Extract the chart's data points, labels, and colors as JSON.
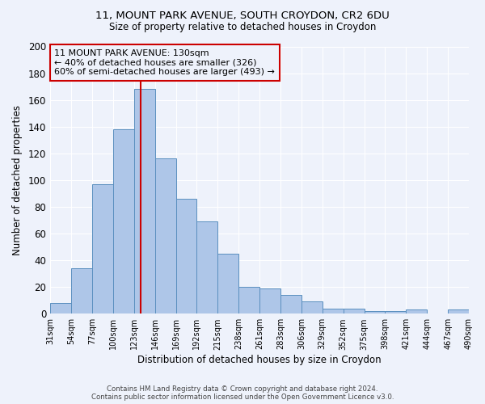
{
  "title1": "11, MOUNT PARK AVENUE, SOUTH CROYDON, CR2 6DU",
  "title2": "Size of property relative to detached houses in Croydon",
  "xlabel": "Distribution of detached houses by size in Croydon",
  "ylabel": "Number of detached properties",
  "bar_labels": [
    "31sqm",
    "54sqm",
    "77sqm",
    "100sqm",
    "123sqm",
    "146sqm",
    "169sqm",
    "192sqm",
    "215sqm",
    "238sqm",
    "261sqm",
    "283sqm",
    "306sqm",
    "329sqm",
    "352sqm",
    "375sqm",
    "398sqm",
    "421sqm",
    "444sqm",
    "467sqm",
    "490sqm"
  ],
  "bar_values": [
    8,
    34,
    97,
    138,
    168,
    116,
    86,
    69,
    45,
    20,
    19,
    14,
    9,
    4,
    4,
    2,
    2,
    3,
    0,
    3
  ],
  "bar_color": "#aec6e8",
  "bar_edgecolor": "#5a8fbf",
  "background_color": "#eef2fb",
  "grid_color": "#ffffff",
  "vline_color": "#cc0000",
  "annotation_text": "11 MOUNT PARK AVENUE: 130sqm\n← 40% of detached houses are smaller (326)\n60% of semi-detached houses are larger (493) →",
  "annotation_box_edgecolor": "#cc0000",
  "footnote1": "Contains HM Land Registry data © Crown copyright and database right 2024.",
  "footnote2": "Contains public sector information licensed under the Open Government Licence v3.0.",
  "ylim": [
    0,
    200
  ],
  "yticks": [
    0,
    20,
    40,
    60,
    80,
    100,
    120,
    140,
    160,
    180,
    200
  ],
  "bin_edges": [
    31,
    54,
    77,
    100,
    123,
    146,
    169,
    192,
    215,
    238,
    261,
    283,
    306,
    329,
    352,
    375,
    398,
    421,
    444,
    467,
    490
  ],
  "property_size": 130
}
